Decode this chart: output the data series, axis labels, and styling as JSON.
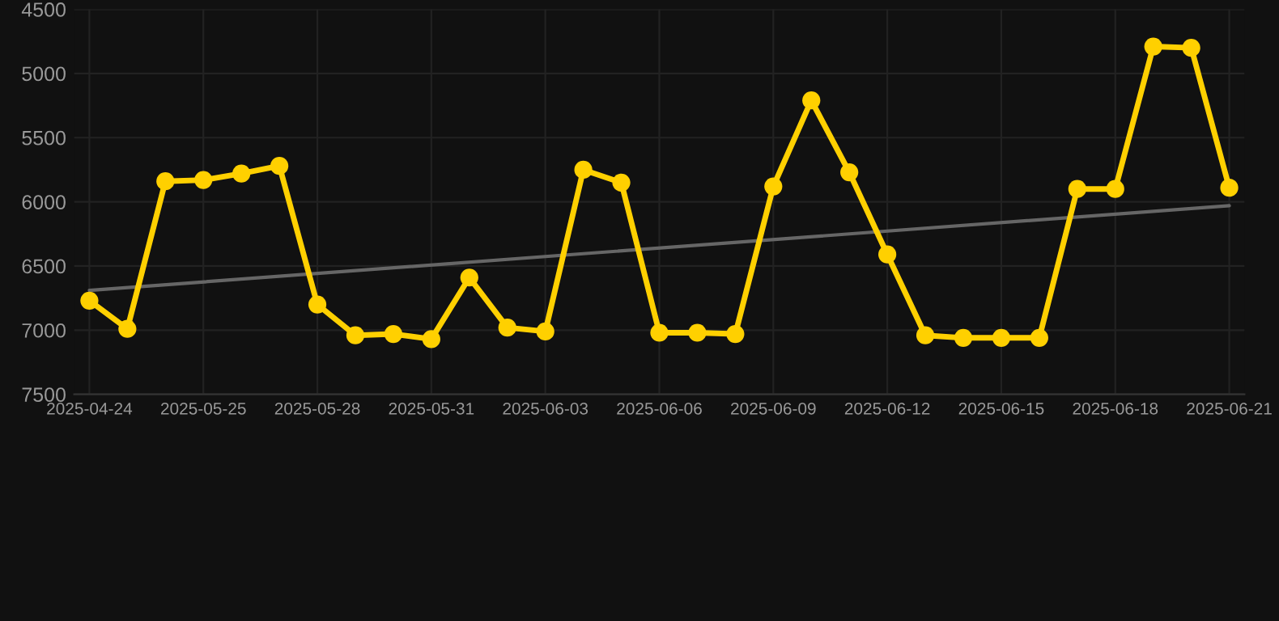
{
  "chart_data": {
    "type": "line",
    "categories": [
      "2025-04-24",
      null,
      null,
      "2025-05-25",
      null,
      null,
      "2025-05-28",
      null,
      null,
      "2025-05-31",
      null,
      null,
      "2025-06-03",
      null,
      null,
      "2025-06-06",
      null,
      null,
      "2025-06-09",
      null,
      null,
      "2025-06-12",
      null,
      null,
      "2025-06-15",
      null,
      null,
      "2025-06-18",
      null,
      null,
      "2025-06-21"
    ],
    "series": [
      {
        "color": "#ffd000",
        "values": [
          6770,
          6990,
          5840,
          5830,
          5780,
          5720,
          6800,
          7040,
          7030,
          7070,
          6590,
          6980,
          7010,
          5750,
          5850,
          7020,
          7020,
          7030,
          5880,
          5210,
          5770,
          6410,
          7040,
          7060,
          7060,
          7060,
          5900,
          5900,
          4790,
          4800,
          5890
        ],
        "marker": "circle"
      },
      {
        "type": "line",
        "color": "#666666",
        "values": [
          6690,
          null,
          null,
          null,
          null,
          null,
          null,
          null,
          null,
          null,
          null,
          null,
          null,
          null,
          null,
          null,
          null,
          null,
          null,
          null,
          null,
          null,
          null,
          null,
          null,
          null,
          null,
          null,
          null,
          null,
          6030
        ],
        "marker": "none"
      }
    ],
    "ylim": [
      7500,
      4500
    ],
    "yticks": [
      4500,
      5000,
      5500,
      6000,
      6500,
      7000,
      7500
    ],
    "grid": true,
    "line_style": "solid"
  }
}
